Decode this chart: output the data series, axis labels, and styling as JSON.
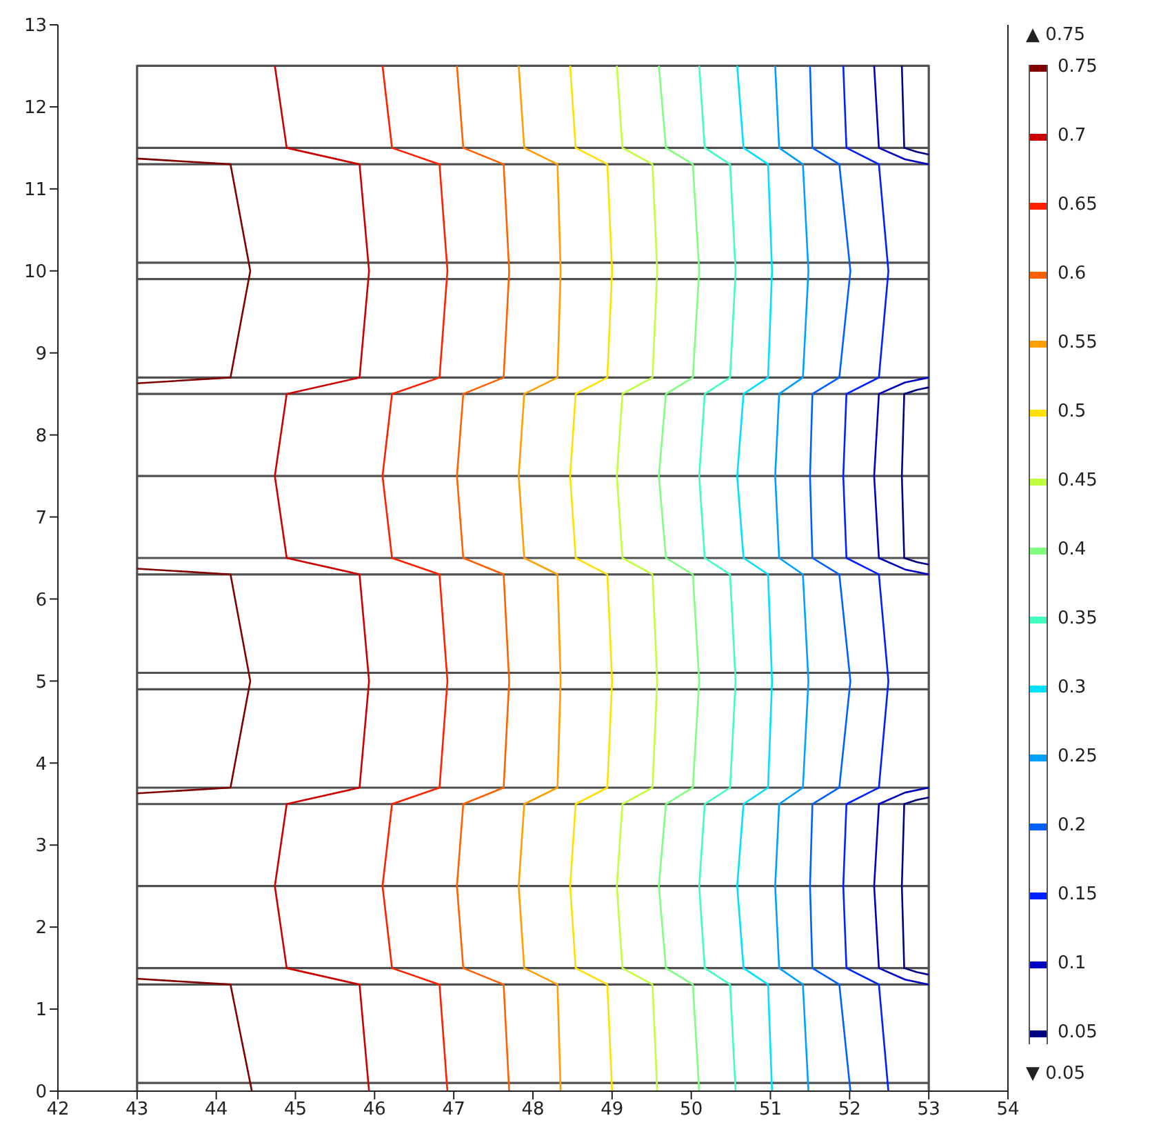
{
  "chart_data": {
    "type": "line",
    "xlim": [
      42,
      54
    ],
    "xticks": [
      42,
      43,
      44,
      45,
      46,
      47,
      48,
      49,
      50,
      51,
      52,
      53,
      54
    ],
    "ylim": [
      0,
      13
    ],
    "yticks": [
      0,
      1,
      2,
      3,
      4,
      5,
      6,
      7,
      8,
      9,
      10,
      11,
      12,
      13
    ],
    "grid": false,
    "legend": "right",
    "marker": "none",
    "line_style": "solid",
    "annotations": [
      "▲ 0.75",
      "▼ 0.05"
    ],
    "series": [
      {
        "color": "#505050",
        "x": [
          43,
          43,
          53,
          53
        ],
        "values": [
          0,
          12.5,
          12.5,
          0
        ]
      },
      {
        "color": "#505050",
        "x": [
          43,
          53
        ],
        "values": [
          0.1,
          0.1
        ]
      },
      {
        "color": "#505050",
        "x": [
          43,
          53
        ],
        "values": [
          1.3,
          1.3
        ]
      },
      {
        "color": "#505050",
        "x": [
          43,
          53
        ],
        "values": [
          1.5,
          1.5
        ]
      },
      {
        "color": "#505050",
        "x": [
          43,
          53
        ],
        "values": [
          2.5,
          2.5
        ]
      },
      {
        "color": "#505050",
        "x": [
          43,
          53
        ],
        "values": [
          3.5,
          3.5
        ]
      },
      {
        "color": "#505050",
        "x": [
          43,
          53
        ],
        "values": [
          3.7,
          3.7
        ]
      },
      {
        "color": "#505050",
        "x": [
          43,
          53
        ],
        "values": [
          4.9,
          4.9
        ]
      },
      {
        "color": "#505050",
        "x": [
          43,
          53
        ],
        "values": [
          5.1,
          5.1
        ]
      },
      {
        "color": "#505050",
        "x": [
          43,
          53
        ],
        "values": [
          6.3,
          6.3
        ]
      },
      {
        "color": "#505050",
        "x": [
          43,
          53
        ],
        "values": [
          6.5,
          6.5
        ]
      },
      {
        "color": "#505050",
        "x": [
          43,
          53
        ],
        "values": [
          7.5,
          7.5
        ]
      },
      {
        "color": "#505050",
        "x": [
          43,
          53
        ],
        "values": [
          8.5,
          8.5
        ]
      },
      {
        "color": "#505050",
        "x": [
          43,
          53
        ],
        "values": [
          8.7,
          8.7
        ]
      },
      {
        "color": "#505050",
        "x": [
          43,
          53
        ],
        "values": [
          9.9,
          9.9
        ]
      },
      {
        "color": "#505050",
        "x": [
          43,
          53
        ],
        "values": [
          10.1,
          10.1
        ]
      },
      {
        "color": "#505050",
        "x": [
          43,
          53
        ],
        "values": [
          11.3,
          11.3
        ]
      },
      {
        "color": "#505050",
        "x": [
          43,
          53
        ],
        "values": [
          11.5,
          11.5
        ]
      },
      {
        "name": "0.75",
        "color": "#800000",
        "x": [
          44.45,
          44.18,
          43,
          null,
          43,
          44.18,
          44.43,
          44.18,
          43,
          null,
          43,
          44.18,
          44.43,
          44.18,
          43
        ],
        "values": [
          0,
          1.3,
          1.37,
          null,
          3.63,
          3.7,
          5,
          6.3,
          6.37,
          null,
          8.63,
          8.7,
          10,
          11.3,
          11.37
        ]
      },
      {
        "name": "0.7",
        "color": "#cc0000",
        "x": [
          45.93,
          45.81,
          44.89,
          44.74,
          44.89,
          45.81,
          45.93,
          45.81,
          44.89,
          44.74,
          44.89,
          45.81,
          45.93,
          45.81,
          44.89,
          44.74
        ],
        "values": [
          0,
          1.3,
          1.5,
          2.5,
          3.5,
          3.7,
          5,
          6.3,
          6.5,
          7.5,
          8.5,
          8.7,
          10,
          11.3,
          11.5,
          12.5
        ]
      },
      {
        "name": "0.65",
        "color": "#ff2000",
        "x": [
          46.92,
          46.82,
          46.22,
          46.1,
          46.22,
          46.82,
          46.92,
          46.82,
          46.22,
          46.1,
          46.22,
          46.82,
          46.92,
          46.82,
          46.22,
          46.1
        ],
        "values": [
          0,
          1.3,
          1.5,
          2.5,
          3.5,
          3.7,
          5,
          6.3,
          6.5,
          7.5,
          8.5,
          8.7,
          10,
          11.3,
          11.5,
          12.5
        ]
      },
      {
        "name": "0.6",
        "color": "#ff6000",
        "x": [
          47.7,
          47.63,
          47.12,
          47.04,
          47.12,
          47.63,
          47.7,
          47.63,
          47.12,
          47.04,
          47.12,
          47.63,
          47.7,
          47.63,
          47.12,
          47.04
        ],
        "values": [
          0,
          1.3,
          1.5,
          2.5,
          3.5,
          3.7,
          5,
          6.3,
          6.5,
          7.5,
          8.5,
          8.7,
          10,
          11.3,
          11.5,
          12.5
        ]
      },
      {
        "name": "0.55",
        "color": "#ffa000",
        "x": [
          48.35,
          48.31,
          47.89,
          47.82,
          47.89,
          48.31,
          48.35,
          48.31,
          47.89,
          47.82,
          47.89,
          48.31,
          48.35,
          48.31,
          47.89,
          47.82
        ],
        "values": [
          0,
          1.3,
          1.5,
          2.5,
          3.5,
          3.7,
          5,
          6.3,
          6.5,
          7.5,
          8.5,
          8.7,
          10,
          11.3,
          11.5,
          12.5
        ]
      },
      {
        "name": "0.5",
        "color": "#ffe000",
        "x": [
          49,
          48.94,
          48.54,
          48.47,
          48.54,
          48.94,
          49,
          48.94,
          48.54,
          48.47,
          48.54,
          48.94,
          49,
          48.94,
          48.54,
          48.47
        ],
        "values": [
          0,
          1.3,
          1.5,
          2.5,
          3.5,
          3.7,
          5,
          6.3,
          6.5,
          7.5,
          8.5,
          8.7,
          10,
          11.3,
          11.5,
          12.5
        ]
      },
      {
        "name": "0.45",
        "color": "#c0ff40",
        "x": [
          49.57,
          49.51,
          49.13,
          49.06,
          49.13,
          49.51,
          49.57,
          49.51,
          49.13,
          49.06,
          49.13,
          49.51,
          49.57,
          49.51,
          49.13,
          49.06
        ],
        "values": [
          0,
          1.3,
          1.5,
          2.5,
          3.5,
          3.7,
          5,
          6.3,
          6.5,
          7.5,
          8.5,
          8.7,
          10,
          11.3,
          11.5,
          12.5
        ]
      },
      {
        "name": "0.4",
        "color": "#80ff80",
        "x": [
          50.1,
          50.02,
          49.68,
          49.59,
          49.68,
          50.02,
          50.1,
          50.02,
          49.68,
          49.59,
          49.68,
          50.02,
          50.1,
          50.02,
          49.68,
          49.59
        ],
        "values": [
          0,
          1.3,
          1.5,
          2.5,
          3.5,
          3.7,
          5,
          6.3,
          6.5,
          7.5,
          8.5,
          8.7,
          10,
          11.3,
          11.5,
          12.5
        ]
      },
      {
        "name": "0.35",
        "color": "#40ffc0",
        "x": [
          50.56,
          50.49,
          50.17,
          50.1,
          50.17,
          50.49,
          50.56,
          50.49,
          50.17,
          50.1,
          50.17,
          50.49,
          50.56,
          50.49,
          50.17,
          50.1
        ],
        "values": [
          0,
          1.3,
          1.5,
          2.5,
          3.5,
          3.7,
          5,
          6.3,
          6.5,
          7.5,
          8.5,
          8.7,
          10,
          11.3,
          11.5,
          12.5
        ]
      },
      {
        "name": "0.3",
        "color": "#00e0ff",
        "x": [
          51.02,
          50.97,
          50.66,
          50.58,
          50.66,
          50.97,
          51.02,
          50.97,
          50.66,
          50.58,
          50.66,
          50.97,
          51.02,
          50.97,
          50.66,
          50.58
        ],
        "values": [
          0,
          1.3,
          1.5,
          2.5,
          3.5,
          3.7,
          5,
          6.3,
          6.5,
          7.5,
          8.5,
          8.7,
          10,
          11.3,
          11.5,
          12.5
        ]
      },
      {
        "name": "0.25",
        "color": "#00a0ff",
        "x": [
          51.48,
          51.41,
          51.11,
          51.06,
          51.11,
          51.41,
          51.48,
          51.41,
          51.11,
          51.06,
          51.11,
          51.41,
          51.48,
          51.41,
          51.11,
          51.06
        ],
        "values": [
          0,
          1.3,
          1.5,
          2.5,
          3.5,
          3.7,
          5,
          6.3,
          6.5,
          7.5,
          8.5,
          8.7,
          10,
          11.3,
          11.5,
          12.5
        ]
      },
      {
        "name": "0.2",
        "color": "#0060ff",
        "x": [
          52.01,
          51.87,
          51.53,
          51.5,
          51.53,
          51.87,
          52.01,
          51.87,
          51.53,
          51.5,
          51.53,
          51.87,
          52.01,
          51.87,
          51.53,
          51.5
        ],
        "values": [
          0,
          1.3,
          1.5,
          2.5,
          3.5,
          3.7,
          5,
          6.3,
          6.5,
          7.5,
          8.5,
          8.7,
          10,
          11.3,
          11.5,
          12.5
        ]
      },
      {
        "name": "0.15",
        "color": "#0020ff",
        "x": [
          52.49,
          52.37,
          51.96,
          51.92,
          51.96,
          52.37,
          52.49,
          52.37,
          51.96,
          51.92,
          51.96,
          52.37,
          52.49,
          52.37,
          51.96,
          51.92
        ],
        "values": [
          0,
          1.3,
          1.5,
          2.5,
          3.5,
          3.7,
          5,
          6.3,
          6.5,
          7.5,
          8.5,
          8.7,
          10,
          11.3,
          11.5,
          12.5
        ]
      },
      {
        "name": "0.1",
        "color": "#0000c0",
        "x": [
          53,
          52.7,
          52.37,
          52.31,
          52.37,
          52.7,
          53,
          null,
          53,
          52.7,
          52.37,
          52.31,
          52.37,
          52.7,
          53,
          null,
          53,
          52.7,
          52.37,
          52.31
        ],
        "values": [
          1.3,
          1.36,
          1.5,
          2.5,
          3.5,
          3.64,
          3.7,
          null,
          6.3,
          6.36,
          6.5,
          7.5,
          8.5,
          8.64,
          8.7,
          null,
          11.3,
          11.36,
          11.5,
          12.5
        ]
      },
      {
        "name": "0.05",
        "color": "#000080",
        "x": [
          53,
          52.85,
          52.69,
          52.66,
          52.69,
          52.85,
          53,
          null,
          53,
          52.85,
          52.69,
          52.66,
          52.69,
          52.85,
          53,
          null,
          53,
          52.85,
          52.69,
          52.66
        ],
        "values": [
          1.42,
          1.45,
          1.5,
          2.5,
          3.5,
          3.55,
          3.58,
          null,
          6.42,
          6.45,
          6.5,
          7.5,
          8.5,
          8.55,
          8.58,
          null,
          11.42,
          11.45,
          11.5,
          12.5
        ]
      }
    ]
  }
}
